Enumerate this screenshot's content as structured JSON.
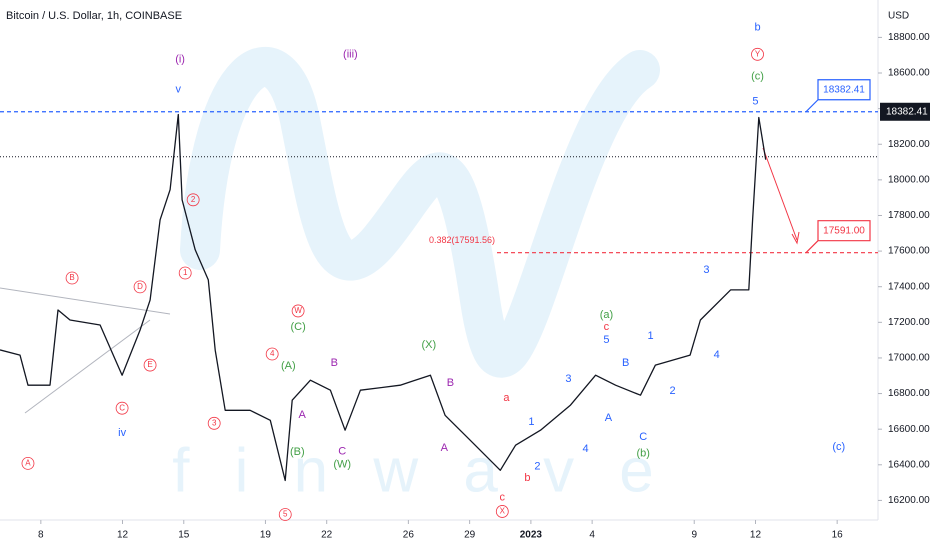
{
  "chart_data": {
    "type": "line",
    "title": "Bitcoin / U.S. Dollar, 1h, COINBASE",
    "y_unit": "USD",
    "watermark": "f i n w a v e",
    "color": "#131722",
    "x": [
      6.0,
      6.98,
      7.37,
      8.45,
      8.84,
      9.43,
      10.9,
      11.98,
      12.86,
      13.35,
      13.84,
      14.33,
      14.73,
      14.92,
      15.56,
      16.2,
      16.54,
      17.03,
      18.25,
      19.24,
      19.97,
      20.31,
      21.2,
      22.18,
      22.9,
      23.65,
      25.6,
      27.08,
      27.8,
      29.04,
      30.5,
      31.25,
      32.47,
      33.94,
      35.17,
      36.15,
      37.37,
      38.1,
      39.8,
      40.3,
      41.78,
      42.67,
      42.86,
      43.16,
      43.5
    ],
    "values": [
      17045,
      17016,
      16847,
      16847,
      17269,
      17213,
      17185,
      16903,
      17157,
      17325,
      17776,
      17945,
      18367,
      17888,
      17607,
      17438,
      17044,
      16706,
      16706,
      16650,
      16312,
      16763,
      16875,
      16819,
      16594,
      16819,
      16847,
      16903,
      16678,
      16537,
      16369,
      16510,
      16594,
      16735,
      16903,
      16847,
      16791,
      16960,
      17016,
      17213,
      17382,
      17382,
      17776,
      18350,
      18113
    ],
    "xlim": [
      6.0,
      49.0
    ],
    "ylim": [
      16090,
      19010
    ],
    "xticks": [
      8,
      12,
      15,
      19,
      22,
      26,
      29,
      {
        "value": 32,
        "label": "2023"
      },
      {
        "value": 35,
        "label": "4"
      },
      {
        "value": 40,
        "label": "9"
      },
      {
        "value": 43,
        "label": "12"
      },
      {
        "value": 47,
        "label": "16"
      }
    ],
    "yticks": [
      {
        "value": 16200,
        "label": "16200.00"
      },
      {
        "value": 16400,
        "label": "16400.00"
      },
      {
        "value": 16600,
        "label": "16600.00"
      },
      {
        "value": 16800,
        "label": "16800.00"
      },
      {
        "value": 17000,
        "label": "17000.00"
      },
      {
        "value": 17200,
        "label": "17200.00"
      },
      {
        "value": 17400,
        "label": "17400.00"
      },
      {
        "value": 17600,
        "label": "17600.00"
      },
      {
        "value": 17800,
        "label": "17800.00"
      },
      {
        "value": 18000,
        "label": "18000.00"
      },
      {
        "value": 18200,
        "label": "18200.00"
      },
      {
        "value": 18400,
        "label": "18400.00"
      },
      {
        "value": 18600,
        "label": "18600.00"
      },
      {
        "value": 18800,
        "label": "18800.00"
      }
    ],
    "current_price": 18130,
    "levels": [
      {
        "value": 18382.41,
        "label": "18382.41",
        "color": "#2962ff"
      },
      {
        "value": 17591.0,
        "label": "17591.00",
        "color": "#f23645"
      }
    ],
    "fib_label": "0.382(17591.56)",
    "annotations": [
      {
        "text": "(i)",
        "x": 14.82,
        "y": 18676,
        "color": "#9c27b0"
      },
      {
        "text": "v",
        "x": 14.73,
        "y": 18507,
        "color": "#2962ff"
      },
      {
        "text": "(iii)",
        "x": 23.16,
        "y": 18704,
        "color": "#9c27b0"
      },
      {
        "text": "b",
        "x": 43.1,
        "y": 18856,
        "color": "#2962ff"
      },
      {
        "text": "Y",
        "x": 43.1,
        "y": 18705,
        "color": "#f23645",
        "circle": true
      },
      {
        "text": "(c)",
        "x": 43.1,
        "y": 18580,
        "color": "#43a047"
      },
      {
        "text": "5",
        "x": 43.0,
        "y": 18440,
        "color": "#2962ff"
      },
      {
        "text": "(c)",
        "x": 47.08,
        "y": 16498,
        "color": "#2962ff"
      },
      {
        "text": "iv",
        "x": 11.98,
        "y": 16577,
        "color": "#2962ff"
      },
      {
        "text": "A",
        "x": 7.37,
        "y": 16408,
        "color": "#f23645",
        "circle": true
      },
      {
        "text": "B",
        "x": 9.53,
        "y": 17449,
        "color": "#f23645",
        "circle": true
      },
      {
        "text": "D",
        "x": 12.86,
        "y": 17399,
        "color": "#f23645",
        "circle": true
      },
      {
        "text": "E",
        "x": 13.35,
        "y": 16960,
        "color": "#f23645",
        "circle": true
      },
      {
        "text": "C",
        "x": 11.98,
        "y": 16718,
        "color": "#f23645",
        "circle": true
      },
      {
        "text": "2",
        "x": 15.46,
        "y": 17888,
        "color": "#f23645",
        "circle": true
      },
      {
        "text": "1",
        "x": 15.07,
        "y": 17477,
        "color": "#f23645",
        "circle": true
      },
      {
        "text": "3",
        "x": 16.49,
        "y": 16633,
        "color": "#f23645",
        "circle": true
      },
      {
        "text": "4",
        "x": 19.33,
        "y": 17022,
        "color": "#f23645",
        "circle": true
      },
      {
        "text": "5",
        "x": 19.97,
        "y": 16121,
        "color": "#f23645",
        "circle": true
      },
      {
        "text": "W",
        "x": 20.6,
        "y": 17264,
        "color": "#f23645",
        "circle": true
      },
      {
        "text": "(C)",
        "x": 20.6,
        "y": 17174,
        "color": "#43a047"
      },
      {
        "text": "(A)",
        "x": 20.12,
        "y": 16954,
        "color": "#43a047"
      },
      {
        "text": "A",
        "x": 20.8,
        "y": 16678,
        "color": "#9c27b0"
      },
      {
        "text": "(B)",
        "x": 20.56,
        "y": 16470,
        "color": "#43a047"
      },
      {
        "text": "B",
        "x": 22.37,
        "y": 16971,
        "color": "#9c27b0"
      },
      {
        "text": "C",
        "x": 22.76,
        "y": 16475,
        "color": "#9c27b0"
      },
      {
        "text": "(W)",
        "x": 22.76,
        "y": 16402,
        "color": "#43a047"
      },
      {
        "text": "(X)",
        "x": 27.0,
        "y": 17072,
        "color": "#43a047"
      },
      {
        "text": "B",
        "x": 28.06,
        "y": 16858,
        "color": "#9c27b0"
      },
      {
        "text": "A",
        "x": 27.76,
        "y": 16493,
        "color": "#9c27b0"
      },
      {
        "text": "a",
        "x": 30.8,
        "y": 16774,
        "color": "#f23645"
      },
      {
        "text": "b",
        "x": 31.83,
        "y": 16324,
        "color": "#f23645"
      },
      {
        "text": "c",
        "x": 30.6,
        "y": 16217,
        "color": "#f23645"
      },
      {
        "text": "X",
        "x": 30.6,
        "y": 16138,
        "color": "#f23645",
        "circle": true
      },
      {
        "text": "1",
        "x": 32.03,
        "y": 16639,
        "color": "#2962ff"
      },
      {
        "text": "2",
        "x": 32.32,
        "y": 16391,
        "color": "#2962ff"
      },
      {
        "text": "3",
        "x": 33.84,
        "y": 16881,
        "color": "#2962ff"
      },
      {
        "text": "4",
        "x": 34.68,
        "y": 16487,
        "color": "#2962ff"
      },
      {
        "text": "(a)",
        "x": 35.7,
        "y": 17241,
        "color": "#43a047"
      },
      {
        "text": "c",
        "x": 35.7,
        "y": 17174,
        "color": "#f23645"
      },
      {
        "text": "5",
        "x": 35.7,
        "y": 17100,
        "color": "#2962ff"
      },
      {
        "text": "A",
        "x": 35.8,
        "y": 16662,
        "color": "#2962ff"
      },
      {
        "text": "B",
        "x": 36.64,
        "y": 16971,
        "color": "#2962ff"
      },
      {
        "text": "C",
        "x": 37.5,
        "y": 16555,
        "color": "#2962ff"
      },
      {
        "text": "(b)",
        "x": 37.5,
        "y": 16464,
        "color": "#43a047"
      },
      {
        "text": "1",
        "x": 37.86,
        "y": 17123,
        "color": "#2962ff"
      },
      {
        "text": "2",
        "x": 38.94,
        "y": 16813,
        "color": "#2962ff"
      },
      {
        "text": "3",
        "x": 40.6,
        "y": 17494,
        "color": "#2962ff"
      },
      {
        "text": "4",
        "x": 41.1,
        "y": 17016,
        "color": "#2962ff"
      }
    ]
  }
}
